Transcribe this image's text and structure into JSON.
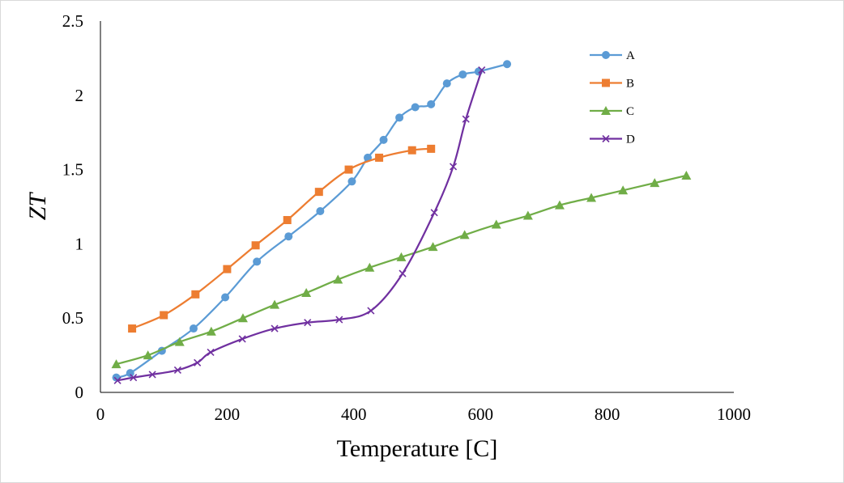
{
  "chart_data": {
    "type": "line",
    "title": "",
    "xlabel": "Temperature [C]",
    "ylabel": "ZT",
    "xlim": [
      0,
      1000
    ],
    "ylim": [
      0,
      2.5
    ],
    "x_ticks": [
      "0",
      "200",
      "400",
      "600",
      "800",
      "1000"
    ],
    "y_ticks": [
      "0",
      "0.5",
      "1",
      "1.5",
      "2",
      "2.5"
    ],
    "grid": false,
    "legend_position": "top-right",
    "series": [
      {
        "name": "A",
        "color": "#5b9bd5",
        "marker": "circle",
        "x": [
          25,
          47,
          97,
          147,
          197,
          247,
          297,
          347,
          397,
          422,
          447,
          472,
          497,
          522,
          547,
          572,
          597,
          642
        ],
        "y": [
          0.1,
          0.13,
          0.28,
          0.43,
          0.64,
          0.88,
          1.05,
          1.22,
          1.42,
          1.58,
          1.7,
          1.85,
          1.92,
          1.94,
          2.08,
          2.14,
          2.16,
          2.21
        ]
      },
      {
        "name": "B",
        "color": "#ed7d31",
        "marker": "square",
        "x": [
          50,
          100,
          150,
          200,
          245,
          295,
          345,
          392,
          440,
          492,
          522
        ],
        "y": [
          0.43,
          0.52,
          0.66,
          0.83,
          0.99,
          1.16,
          1.35,
          1.5,
          1.58,
          1.63,
          1.64
        ]
      },
      {
        "name": "C",
        "color": "#70ad47",
        "marker": "triangle",
        "x": [
          25,
          75,
          125,
          175,
          225,
          275,
          325,
          375,
          425,
          475,
          525,
          575,
          625,
          675,
          725,
          775,
          825,
          875,
          925
        ],
        "y": [
          0.19,
          0.25,
          0.34,
          0.41,
          0.5,
          0.59,
          0.67,
          0.76,
          0.84,
          0.91,
          0.98,
          1.06,
          1.13,
          1.19,
          1.26,
          1.31,
          1.36,
          1.41,
          1.46
        ]
      },
      {
        "name": "D",
        "color": "#7030a0",
        "marker": "x",
        "x": [
          27,
          52,
          82,
          122,
          153,
          174,
          224,
          275,
          327,
          377,
          427,
          477,
          527,
          557,
          577,
          602
        ],
        "y": [
          0.08,
          0.1,
          0.12,
          0.15,
          0.2,
          0.27,
          0.36,
          0.43,
          0.47,
          0.49,
          0.55,
          0.8,
          1.21,
          1.52,
          1.84,
          2.17
        ]
      }
    ]
  }
}
